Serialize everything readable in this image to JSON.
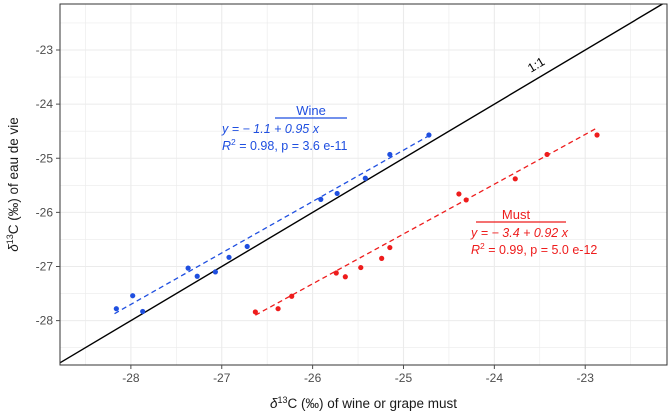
{
  "chart_data": {
    "type": "scatter",
    "xlabel_html": [
      "δ",
      "13",
      "C (‰) of wine or grape must"
    ],
    "ylabel_html": [
      "δ",
      "13",
      "C (‰) of eau de vie"
    ],
    "xlim": [
      -28.78,
      -22.1
    ],
    "ylim": [
      -28.82,
      -22.15
    ],
    "x_ticks": [
      -28,
      -27,
      -26,
      -25,
      -24,
      -23
    ],
    "y_ticks": [
      -28,
      -27,
      -26,
      -25,
      -24,
      -23
    ],
    "grid": true,
    "colors": {
      "wine": "#1f4fe0",
      "must": "#ee1c1c",
      "identity": "#000000",
      "grid": "#ebebeb",
      "axis": "#4d4d4d"
    },
    "identity_line": {
      "label": "1:1",
      "x_at": -23.45
    },
    "series": [
      {
        "name": "Wine",
        "key": "wine",
        "x": [
          -28.16,
          -27.98,
          -27.87,
          -27.37,
          -27.27,
          -27.07,
          -26.92,
          -26.72,
          -25.91,
          -25.73,
          -25.42,
          -25.15,
          -24.72
        ],
        "y": [
          -27.78,
          -27.54,
          -27.83,
          -27.03,
          -27.18,
          -27.1,
          -26.83,
          -26.63,
          -25.76,
          -25.65,
          -25.37,
          -24.93,
          -24.57
        ],
        "fit": {
          "intercept": -1.1,
          "slope": 0.95,
          "x_range": [
            -28.18,
            -24.72
          ]
        },
        "annotation": {
          "title": "Wine",
          "eq_prefix": "y = − 1.1 + 0.95 x",
          "r2_tail": " = 0.98, p = 3.6 e-11"
        }
      },
      {
        "name": "Must",
        "key": "must",
        "x": [
          -26.63,
          -26.38,
          -26.23,
          -25.74,
          -25.64,
          -25.47,
          -25.24,
          -25.15,
          -24.39,
          -24.31,
          -23.77,
          -23.42,
          -22.87
        ],
        "y": [
          -27.84,
          -27.78,
          -27.55,
          -27.12,
          -27.19,
          -27.02,
          -26.85,
          -26.65,
          -25.66,
          -25.77,
          -25.38,
          -24.93,
          -24.57
        ],
        "fit": {
          "intercept": -3.4,
          "slope": 0.92,
          "x_range": [
            -26.63,
            -22.87
          ]
        },
        "annotation": {
          "title": "Must",
          "eq_prefix": "y = − 3.4 + 0.92 x",
          "r2_tail": " = 0.99, p = 5.0 e-12"
        }
      }
    ]
  }
}
